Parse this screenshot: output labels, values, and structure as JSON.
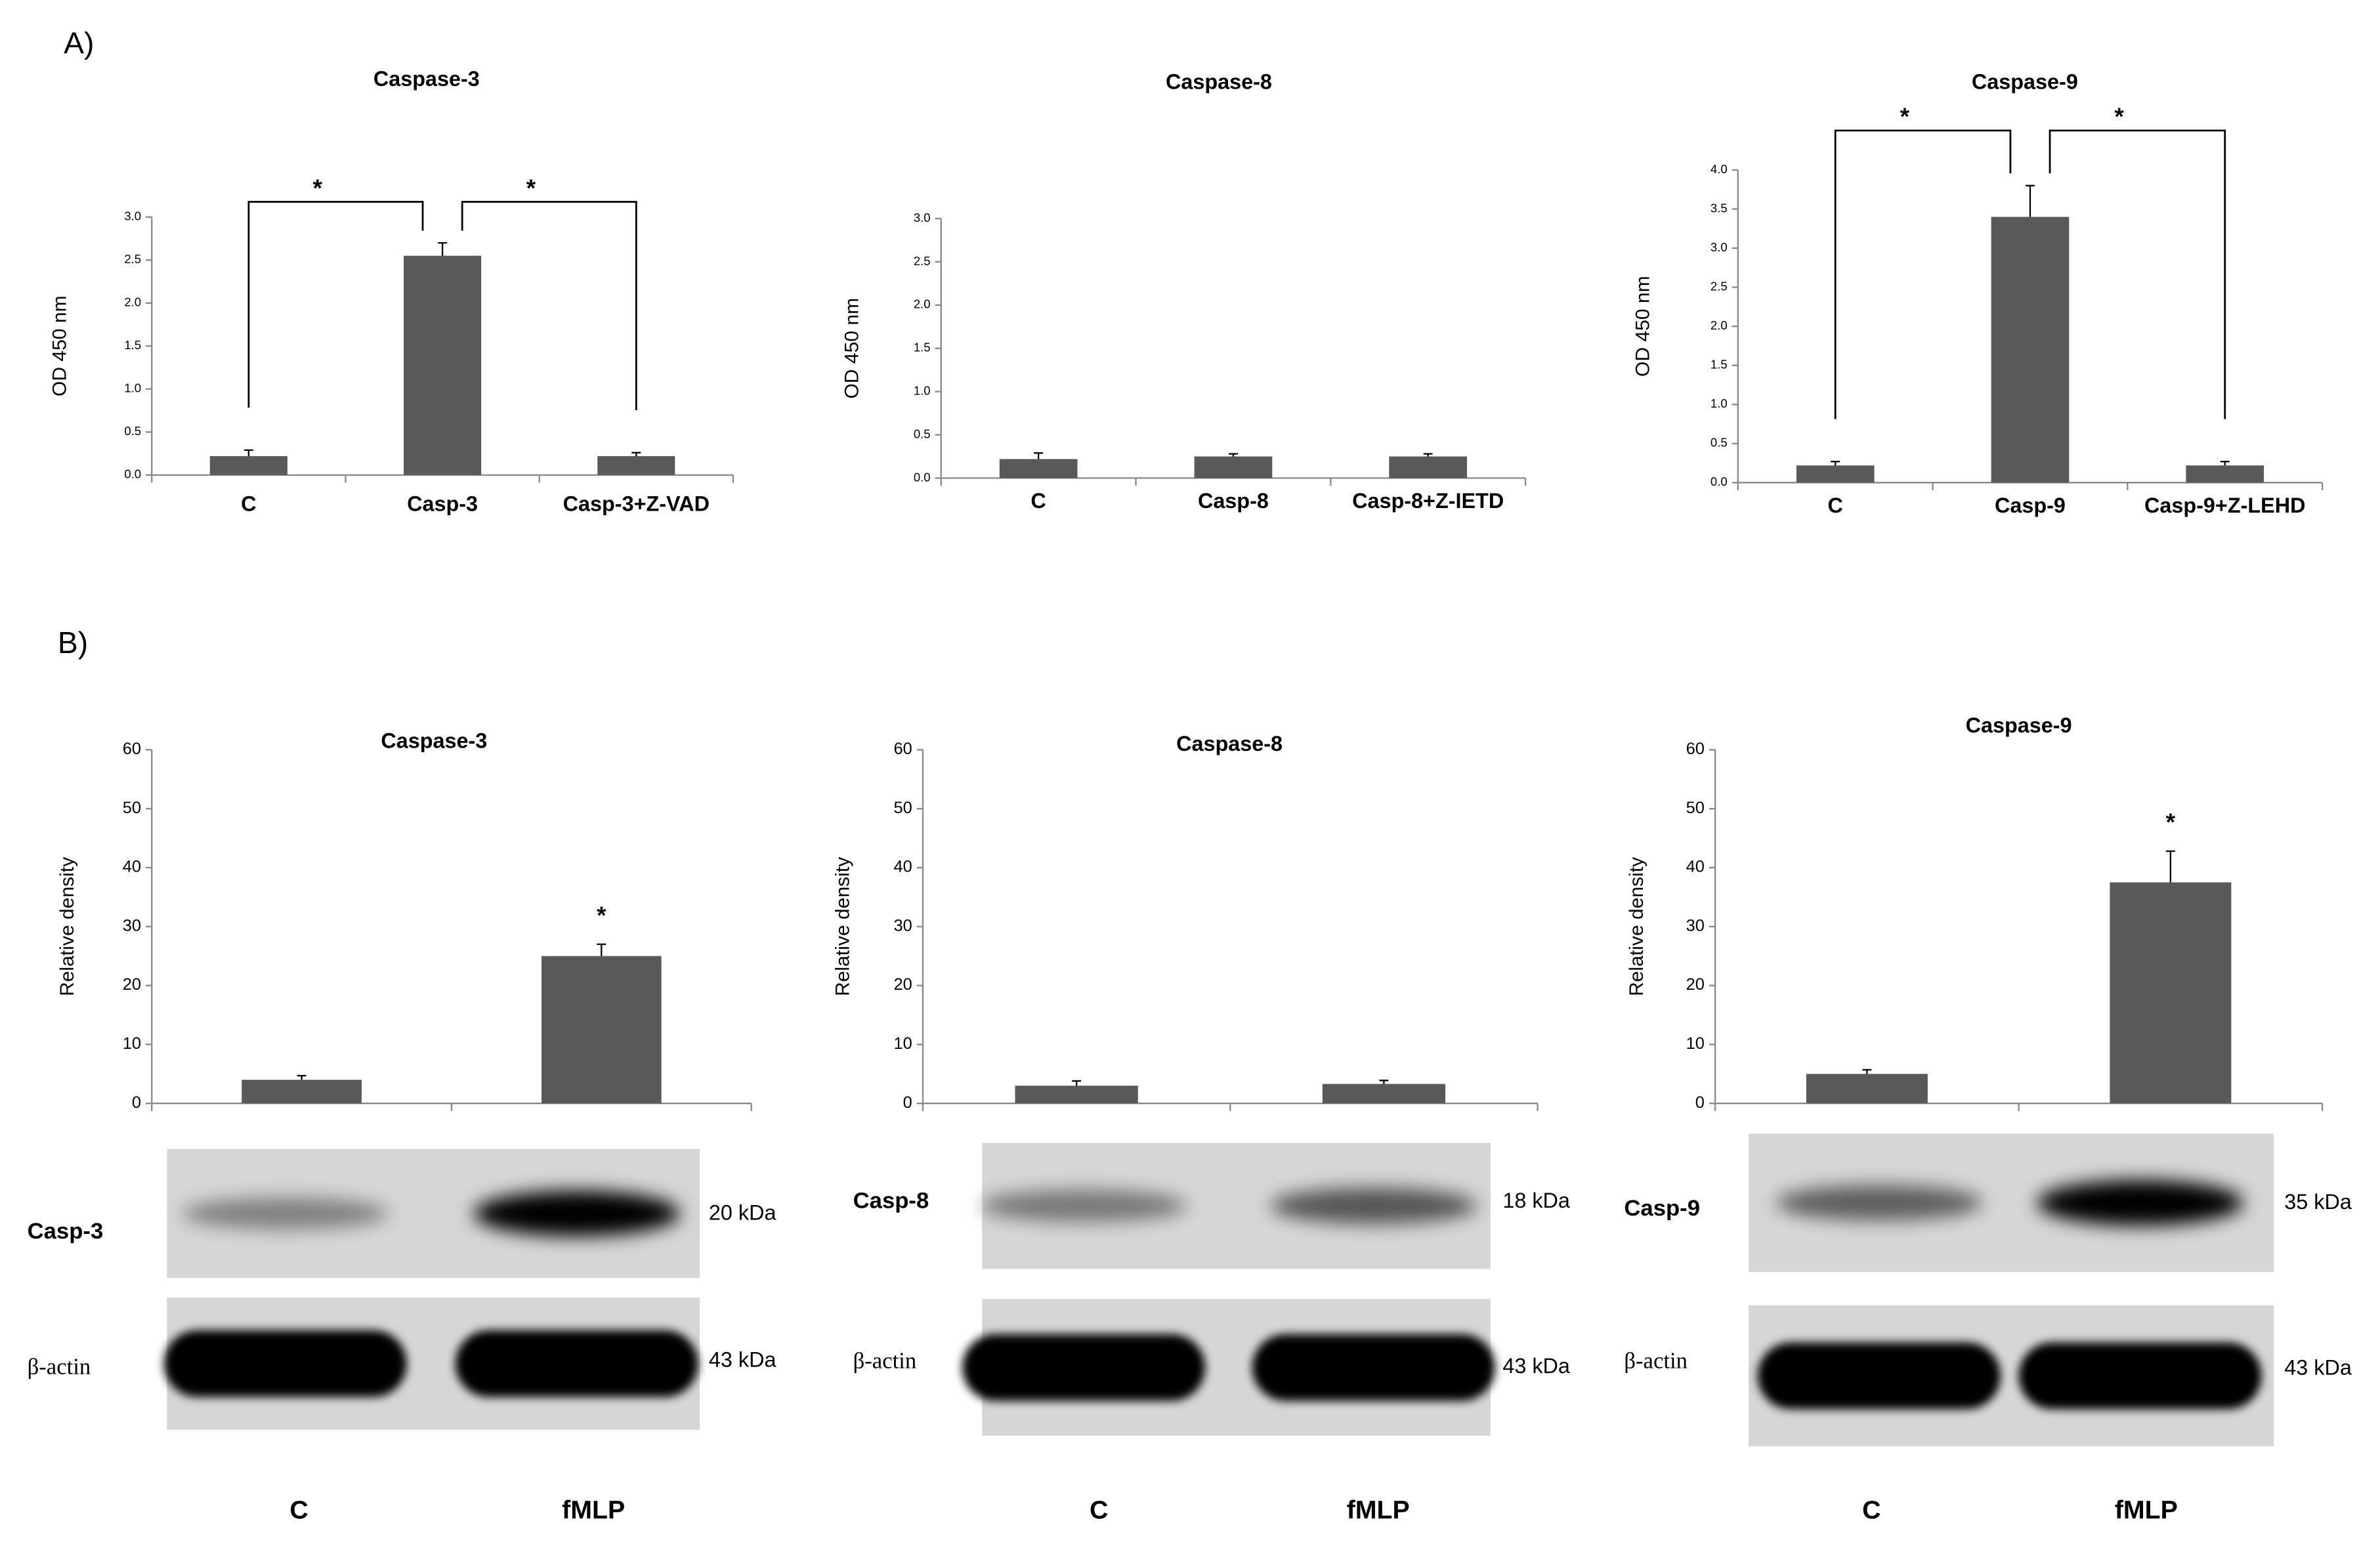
{
  "panel_labels": [
    "A)",
    "B)"
  ],
  "chart_data": [
    {
      "type": "bar",
      "title": "Caspase-3",
      "ylabel": "OD 450 nm",
      "categories": [
        "C",
        "Casp-3",
        "Casp-3+Z-VAD"
      ],
      "values": [
        0.22,
        2.55,
        0.22
      ],
      "errors": [
        0.07,
        0.15,
        0.04
      ],
      "color": "#595959",
      "ylim": [
        0,
        3
      ],
      "yticks": [
        {
          "value": 0,
          "label": "0.0"
        },
        {
          "value": 0.5,
          "label": "0.5"
        },
        {
          "value": 1,
          "label": "1.0"
        },
        {
          "value": 1.5,
          "label": "1.5"
        },
        {
          "value": 2,
          "label": "2.0"
        },
        {
          "value": 2.5,
          "label": "2.5"
        },
        {
          "value": 3,
          "label": "3.0"
        }
      ],
      "brackets": [
        "*",
        "*"
      ]
    },
    {
      "type": "bar",
      "title": "Caspase-8",
      "ylabel": "OD 450 nm",
      "categories": [
        "C",
        "Casp-8",
        "Casp-8+Z-IETD"
      ],
      "values": [
        0.22,
        0.25,
        0.25
      ],
      "errors": [
        0.07,
        0.03,
        0.03
      ],
      "color": "#595959",
      "ylim": [
        0,
        3
      ],
      "yticks": [
        {
          "value": 0,
          "label": "0.0"
        },
        {
          "value": 0.5,
          "label": "0.5"
        },
        {
          "value": 1,
          "label": "1.0"
        },
        {
          "value": 1.5,
          "label": "1.5"
        },
        {
          "value": 2,
          "label": "2.0"
        },
        {
          "value": 2.5,
          "label": "2.5"
        },
        {
          "value": 3,
          "label": "3.0"
        }
      ]
    },
    {
      "type": "bar",
      "title": "Caspase-9",
      "ylabel": "OD 450 nm",
      "categories": [
        "C",
        "Casp-9",
        "Casp-9+Z-LEHD"
      ],
      "values": [
        0.22,
        3.4,
        0.22
      ],
      "errors": [
        0.05,
        0.4,
        0.05
      ],
      "color": "#595959",
      "ylim": [
        0,
        4
      ],
      "yticks": [
        {
          "value": 0,
          "label": "0.0"
        },
        {
          "value": 0.5,
          "label": "0.5"
        },
        {
          "value": 1,
          "label": "1.0"
        },
        {
          "value": 1.5,
          "label": "1.5"
        },
        {
          "value": 2,
          "label": "2.0"
        },
        {
          "value": 2.5,
          "label": "2.5"
        },
        {
          "value": 3,
          "label": "3.0"
        },
        {
          "value": 3.5,
          "label": "3.5"
        },
        {
          "value": 4,
          "label": "4.0"
        }
      ],
      "brackets": [
        "*",
        "*"
      ]
    },
    {
      "type": "bar",
      "title": "Caspase-3",
      "ylabel": "Relative density",
      "categories": [
        "C",
        "fMLP"
      ],
      "values": [
        4,
        25
      ],
      "errors": [
        0.7,
        2
      ],
      "color": "#595959",
      "ylim": [
        0,
        60
      ],
      "yticks": [
        0,
        10,
        20,
        30,
        40,
        50,
        60
      ],
      "marks": [
        null,
        "*"
      ]
    },
    {
      "type": "bar",
      "title": "Caspase-8",
      "ylabel": "Relative density",
      "categories": [
        "C",
        "fMLP"
      ],
      "values": [
        3,
        3.3
      ],
      "errors": [
        0.8,
        0.6
      ],
      "color": "#595959",
      "ylim": [
        0,
        60
      ],
      "yticks": [
        0,
        10,
        20,
        30,
        40,
        50,
        60
      ]
    },
    {
      "type": "bar",
      "title": "Caspase-9",
      "ylabel": "Relative density",
      "categories": [
        "C",
        "fMLP"
      ],
      "values": [
        5,
        37.5
      ],
      "errors": [
        0.7,
        5.3
      ],
      "color": "#595959",
      "ylim": [
        0,
        60
      ],
      "yticks": [
        0,
        10,
        20,
        30,
        40,
        50,
        60
      ],
      "marks": [
        null,
        "*"
      ]
    }
  ],
  "blots": [
    {
      "rows": [
        {
          "label": "Casp-3",
          "size": "20 kDa"
        },
        {
          "label": "β-actin",
          "size": "43 kDa"
        }
      ]
    },
    {
      "rows": [
        {
          "label": "Casp-8",
          "size": "18 kDa"
        },
        {
          "label": "β-actin",
          "size": "43 kDa"
        }
      ]
    },
    {
      "rows": [
        {
          "label": "Casp-9",
          "size": "35 kDa"
        },
        {
          "label": "β-actin",
          "size": "43 kDa"
        }
      ]
    }
  ]
}
